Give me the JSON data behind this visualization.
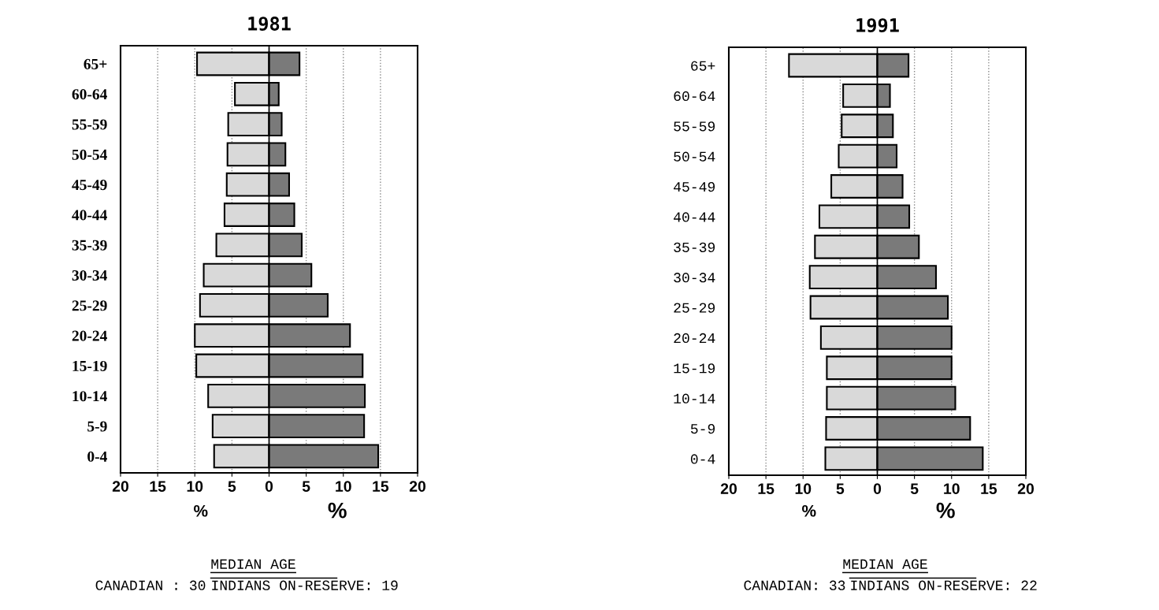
{
  "chart_data": [
    {
      "type": "bar",
      "title": "1981",
      "orientation": "horizontal",
      "stacked": true,
      "categories": [
        "65+",
        "60-64",
        "55-59",
        "50-54",
        "45-49",
        "40-44",
        "35-39",
        "30-34",
        "25-29",
        "20-24",
        "15-19",
        "10-14",
        "5-9",
        "0-4"
      ],
      "series": [
        {
          "color": "#d9d9d9",
          "values": [
            -9.7,
            -4.6,
            -5.5,
            -5.6,
            -5.7,
            -6.0,
            -7.1,
            -8.8,
            -9.3,
            -10.0,
            -9.8,
            -8.2,
            -7.6,
            -7.4
          ]
        },
        {
          "color": "#7a7a7a",
          "values": [
            4.1,
            1.3,
            1.7,
            2.2,
            2.7,
            3.4,
            4.4,
            5.7,
            7.9,
            10.9,
            12.6,
            12.9,
            12.8,
            14.7
          ]
        }
      ],
      "xlim": [
        -20,
        20
      ],
      "xticks": [
        {
          "value": -20,
          "label": "20"
        },
        {
          "value": -15,
          "label": "15"
        },
        {
          "value": -10,
          "label": "10"
        },
        {
          "value": -5,
          "label": "5"
        },
        0,
        5,
        10,
        15,
        20
      ],
      "grid": "x",
      "annotations": [
        "%",
        "%",
        "MEDIAN AGE",
        "CANADIAN : 30",
        "INDIANS ON-RESERVE: 19"
      ]
    },
    {
      "type": "bar",
      "title": "1991",
      "orientation": "horizontal",
      "stacked": true,
      "categories": [
        "65+",
        "60-64",
        "55-59",
        "50-54",
        "45-49",
        "40-44",
        "35-39",
        "30-34",
        "25-29",
        "20-24",
        "15-19",
        "10-14",
        "5-9",
        "0-4"
      ],
      "series": [
        {
          "color": "#d9d9d9",
          "values": [
            -11.9,
            -4.6,
            -4.8,
            -5.2,
            -6.2,
            -7.8,
            -8.4,
            -9.1,
            -9.0,
            -7.6,
            -6.8,
            -6.8,
            -6.9,
            -7.0
          ]
        },
        {
          "color": "#7a7a7a",
          "values": [
            4.2,
            1.7,
            2.1,
            2.6,
            3.4,
            4.3,
            5.6,
            7.9,
            9.5,
            10.0,
            10.0,
            10.5,
            12.5,
            14.2
          ]
        }
      ],
      "xlim": [
        -20,
        20
      ],
      "xticks": [
        {
          "value": -20,
          "label": "20"
        },
        {
          "value": -15,
          "label": "15"
        },
        {
          "value": -10,
          "label": "10"
        },
        {
          "value": -5,
          "label": "5"
        },
        0,
        5,
        10,
        15,
        20
      ],
      "grid": "x",
      "annotations": [
        "%",
        "%",
        "MEDIAN AGE",
        "CANADIAN: 33",
        "INDIANS ON-RESERVE: 22"
      ]
    }
  ]
}
